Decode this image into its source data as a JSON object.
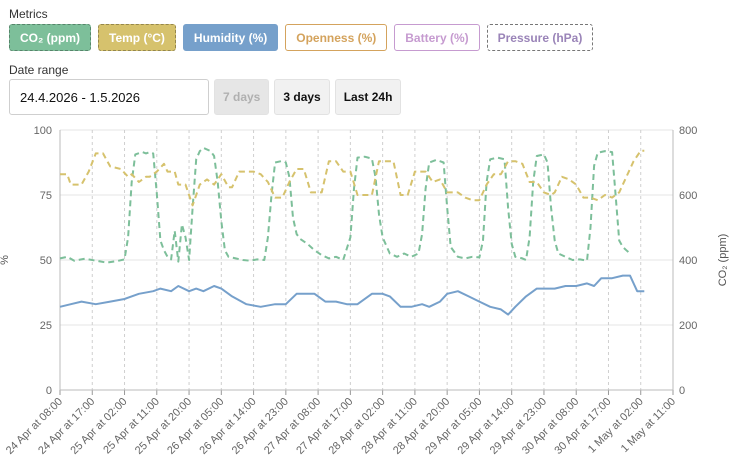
{
  "metrics": {
    "label": "Metrics",
    "chips": [
      {
        "name": "co2",
        "label": "CO₂ (ppm)",
        "style": "active-dashed",
        "bg": "#7dbf9a",
        "color": "#ffffff",
        "border": "#7dbf9a"
      },
      {
        "name": "temp",
        "label": "Temp (°C)",
        "style": "active-dashed",
        "bg": "#d6c26d",
        "color": "#ffffff",
        "border": "#d6c26d"
      },
      {
        "name": "humidity",
        "label": "Humidity (%)",
        "style": "active",
        "bg": "#76a0cb",
        "color": "#ffffff",
        "border": "#76a0cb"
      },
      {
        "name": "openness",
        "label": "Openness (%)",
        "style": "outline",
        "bg": "#ffffff",
        "color": "#d4a35d",
        "border": "#d4a35d"
      },
      {
        "name": "battery",
        "label": "Battery (%)",
        "style": "outline",
        "bg": "#ffffff",
        "color": "#c69bd0",
        "border": "#c69bd0"
      },
      {
        "name": "pressure",
        "label": "Pressure (hPa)",
        "style": "outline-dashed",
        "bg": "#ffffff",
        "color": "#9a84b8",
        "border": "#777777"
      }
    ]
  },
  "date_range": {
    "label": "Date range",
    "value": "24.4.2026 - 1.5.2026",
    "buttons": [
      {
        "name": "7-days",
        "label": "7 days",
        "disabled": true
      },
      {
        "name": "3-days",
        "label": "3 days",
        "disabled": false
      },
      {
        "name": "last-24h",
        "label": "Last 24h",
        "disabled": false
      }
    ]
  },
  "chart_data": {
    "type": "line",
    "left_axis": {
      "title": "%",
      "range": [
        0,
        100
      ],
      "ticks": [
        "0",
        "25",
        "50",
        "75",
        "100"
      ]
    },
    "right_axis": {
      "title": "CO₂ (ppm)",
      "range": [
        0,
        800
      ],
      "ticks": [
        "0",
        "200",
        "400",
        "600",
        "800"
      ]
    },
    "grid": true,
    "x_ticks": [
      "24 Apr at 08:00",
      "24 Apr at 17:00",
      "25 Apr at 02:00",
      "25 Apr at 11:00",
      "25 Apr at 20:00",
      "26 Apr at 05:00",
      "26 Apr at 14:00",
      "26 Apr at 23:00",
      "27 Apr at 08:00",
      "27 Apr at 17:00",
      "28 Apr at 02:00",
      "28 Apr at 11:00",
      "28 Apr at 20:00",
      "29 Apr at 05:00",
      "29 Apr at 14:00",
      "29 Apr at 23:00",
      "30 Apr at 08:00",
      "30 Apr at 17:00",
      "1 May at 02:00",
      "1 May at 11:00"
    ],
    "x_hours": [
      0,
      171
    ],
    "series": [
      {
        "name": "Humidity (%)",
        "color": "#76a0cb",
        "dash": "none",
        "axis": "left",
        "points": [
          [
            0,
            32
          ],
          [
            3,
            33
          ],
          [
            6,
            34
          ],
          [
            10,
            33
          ],
          [
            14,
            34
          ],
          [
            18,
            35
          ],
          [
            22,
            37
          ],
          [
            26,
            38
          ],
          [
            28,
            39
          ],
          [
            31,
            38
          ],
          [
            33,
            40
          ],
          [
            36,
            38
          ],
          [
            38,
            39
          ],
          [
            40,
            38
          ],
          [
            43,
            40
          ],
          [
            45,
            39
          ],
          [
            48,
            36
          ],
          [
            52,
            33
          ],
          [
            56,
            32
          ],
          [
            60,
            33
          ],
          [
            63,
            33
          ],
          [
            66,
            37
          ],
          [
            68,
            37
          ],
          [
            71,
            37
          ],
          [
            74,
            34
          ],
          [
            77,
            34
          ],
          [
            80,
            33
          ],
          [
            83,
            33
          ],
          [
            87,
            37
          ],
          [
            90,
            37
          ],
          [
            92,
            36
          ],
          [
            95,
            32
          ],
          [
            98,
            32
          ],
          [
            101,
            33
          ],
          [
            103,
            32
          ],
          [
            106,
            34
          ],
          [
            108,
            37
          ],
          [
            111,
            38
          ],
          [
            114,
            36
          ],
          [
            117,
            34
          ],
          [
            120,
            32
          ],
          [
            123,
            31
          ],
          [
            125,
            29
          ],
          [
            127,
            32
          ],
          [
            130,
            36
          ],
          [
            133,
            39
          ],
          [
            136,
            39
          ],
          [
            138,
            39
          ],
          [
            141,
            40
          ],
          [
            144,
            40
          ],
          [
            147,
            41
          ],
          [
            149,
            40
          ],
          [
            151,
            43
          ],
          [
            154,
            43
          ],
          [
            157,
            44
          ],
          [
            159,
            44
          ],
          [
            161,
            38
          ],
          [
            163,
            38
          ]
        ]
      },
      {
        "name": "CO₂ (ppm)",
        "color": "#7dbf9a",
        "dash": "6,4",
        "axis": "right",
        "points": [
          [
            0,
            405
          ],
          [
            2,
            410
          ],
          [
            4,
            398
          ],
          [
            7,
            404
          ],
          [
            10,
            398
          ],
          [
            13,
            392
          ],
          [
            16,
            397
          ],
          [
            18,
            402
          ],
          [
            19,
            470
          ],
          [
            20,
            640
          ],
          [
            21,
            725
          ],
          [
            23,
            732
          ],
          [
            24,
            728
          ],
          [
            25,
            732
          ],
          [
            26,
            728
          ],
          [
            27,
            605
          ],
          [
            28,
            460
          ],
          [
            29,
            430
          ],
          [
            30,
            410
          ],
          [
            31,
            402
          ],
          [
            32,
            490
          ],
          [
            33,
            395
          ],
          [
            34,
            510
          ],
          [
            35,
            470
          ],
          [
            36,
            400
          ],
          [
            37,
            560
          ],
          [
            38,
            710
          ],
          [
            39,
            735
          ],
          [
            40,
            745
          ],
          [
            42,
            735
          ],
          [
            43,
            720
          ],
          [
            44,
            640
          ],
          [
            45,
            520
          ],
          [
            46,
            430
          ],
          [
            47,
            410
          ],
          [
            49,
            405
          ],
          [
            51,
            400
          ],
          [
            53,
            398
          ],
          [
            55,
            402
          ],
          [
            57,
            400
          ],
          [
            58,
            470
          ],
          [
            59,
            600
          ],
          [
            60,
            700
          ],
          [
            62,
            705
          ],
          [
            63,
            700
          ],
          [
            64,
            655
          ],
          [
            65,
            530
          ],
          [
            66,
            480
          ],
          [
            67,
            465
          ],
          [
            69,
            450
          ],
          [
            71,
            430
          ],
          [
            73,
            415
          ],
          [
            75,
            405
          ],
          [
            77,
            410
          ],
          [
            79,
            400
          ],
          [
            81,
            470
          ],
          [
            82,
            620
          ],
          [
            83,
            715
          ],
          [
            85,
            718
          ],
          [
            87,
            712
          ],
          [
            88,
            655
          ],
          [
            89,
            540
          ],
          [
            90,
            470
          ],
          [
            92,
            420
          ],
          [
            94,
            410
          ],
          [
            96,
            420
          ],
          [
            98,
            410
          ],
          [
            100,
            420
          ],
          [
            101,
            480
          ],
          [
            102,
            620
          ],
          [
            103,
            700
          ],
          [
            105,
            708
          ],
          [
            107,
            700
          ],
          [
            108,
            560
          ],
          [
            109,
            440
          ],
          [
            111,
            410
          ],
          [
            113,
            405
          ],
          [
            115,
            410
          ],
          [
            117,
            408
          ],
          [
            118,
            460
          ],
          [
            119,
            640
          ],
          [
            120,
            710
          ],
          [
            122,
            715
          ],
          [
            124,
            710
          ],
          [
            125,
            560
          ],
          [
            126,
            450
          ],
          [
            127,
            410
          ],
          [
            129,
            405
          ],
          [
            130,
            400
          ],
          [
            131,
            470
          ],
          [
            132,
            640
          ],
          [
            133,
            720
          ],
          [
            135,
            725
          ],
          [
            136,
            700
          ],
          [
            137,
            560
          ],
          [
            138,
            460
          ],
          [
            139,
            420
          ],
          [
            141,
            410
          ],
          [
            143,
            400
          ],
          [
            145,
            402
          ],
          [
            147,
            398
          ],
          [
            148,
            500
          ],
          [
            149,
            690
          ],
          [
            150,
            730
          ],
          [
            152,
            735
          ],
          [
            154,
            732
          ],
          [
            155,
            600
          ],
          [
            156,
            460
          ],
          [
            157,
            440
          ],
          [
            158,
            430
          ],
          [
            159,
            420
          ]
        ]
      },
      {
        "name": "Temp (°C)",
        "color": "#d6c26d",
        "dash": "6,4",
        "axis": "left",
        "points": [
          [
            0,
            83
          ],
          [
            2,
            83
          ],
          [
            3,
            79
          ],
          [
            6,
            79
          ],
          [
            8,
            84
          ],
          [
            10,
            91
          ],
          [
            12,
            91
          ],
          [
            14,
            86
          ],
          [
            17,
            85
          ],
          [
            19,
            82
          ],
          [
            20,
            83
          ],
          [
            22,
            80
          ],
          [
            24,
            82
          ],
          [
            25,
            82
          ],
          [
            27,
            84
          ],
          [
            29,
            87
          ],
          [
            30,
            84
          ],
          [
            32,
            84
          ],
          [
            33,
            79
          ],
          [
            35,
            79
          ],
          [
            37,
            71
          ],
          [
            39,
            79
          ],
          [
            41,
            81
          ],
          [
            42,
            80
          ],
          [
            43,
            79
          ],
          [
            45,
            83
          ],
          [
            47,
            78
          ],
          [
            48,
            78
          ],
          [
            50,
            84
          ],
          [
            52,
            84
          ],
          [
            54,
            84
          ],
          [
            56,
            83
          ],
          [
            58,
            80
          ],
          [
            60,
            74
          ],
          [
            62,
            74
          ],
          [
            64,
            80
          ],
          [
            66,
            85
          ],
          [
            68,
            85
          ],
          [
            70,
            76
          ],
          [
            73,
            76
          ],
          [
            75,
            88
          ],
          [
            77,
            88
          ],
          [
            79,
            84
          ],
          [
            81,
            84
          ],
          [
            83,
            75
          ],
          [
            85,
            75
          ],
          [
            87,
            75
          ],
          [
            89,
            88
          ],
          [
            91,
            88
          ],
          [
            93,
            88
          ],
          [
            95,
            75
          ],
          [
            97,
            75
          ],
          [
            99,
            84
          ],
          [
            101,
            84
          ],
          [
            102,
            84
          ],
          [
            104,
            80
          ],
          [
            106,
            81
          ],
          [
            108,
            76
          ],
          [
            111,
            76
          ],
          [
            113,
            74
          ],
          [
            115,
            73
          ],
          [
            117,
            73
          ],
          [
            119,
            79
          ],
          [
            121,
            83
          ],
          [
            123,
            83
          ],
          [
            125,
            88
          ],
          [
            127,
            88
          ],
          [
            129,
            87
          ],
          [
            131,
            80
          ],
          [
            133,
            80
          ],
          [
            135,
            76
          ],
          [
            137,
            75
          ],
          [
            138,
            76
          ],
          [
            140,
            82
          ],
          [
            142,
            81
          ],
          [
            144,
            79
          ],
          [
            146,
            74
          ],
          [
            148,
            74
          ],
          [
            150,
            73
          ],
          [
            152,
            75
          ],
          [
            154,
            74
          ],
          [
            156,
            76
          ],
          [
            158,
            82
          ],
          [
            160,
            88
          ],
          [
            162,
            92
          ],
          [
            163,
            92
          ]
        ]
      }
    ]
  }
}
